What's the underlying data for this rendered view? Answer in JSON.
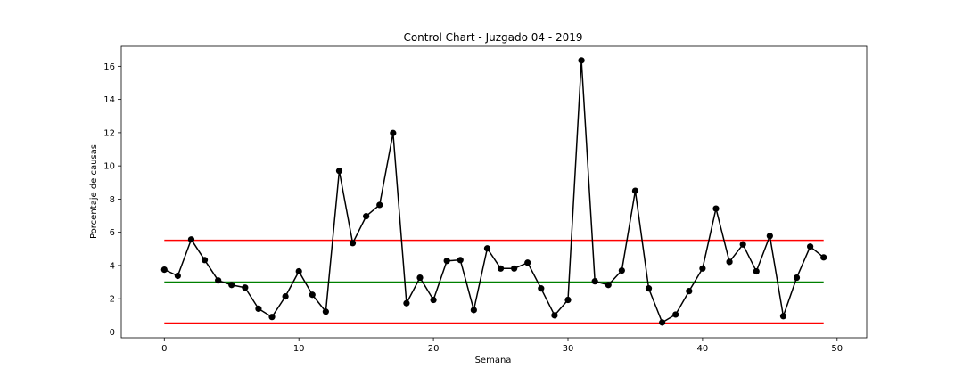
{
  "chart_data": {
    "type": "line",
    "title": "Control Chart - Juzgado 04 - 2019",
    "xlabel": "Semana",
    "ylabel": "Porcentaje de causas",
    "xlim": [
      -3.2,
      52.2
    ],
    "ylim": [
      -0.35,
      17.2
    ],
    "xticks": [
      0,
      10,
      20,
      30,
      40,
      50
    ],
    "yticks": [
      0,
      2,
      4,
      6,
      8,
      10,
      12,
      14,
      16
    ],
    "grid": false,
    "legend": "none",
    "series": [
      {
        "color": "#000000",
        "marker": "circle",
        "x": [
          0,
          1,
          2,
          3,
          4,
          5,
          6,
          7,
          8,
          9,
          10,
          11,
          12,
          13,
          14,
          15,
          16,
          17,
          18,
          19,
          20,
          21,
          22,
          23,
          24,
          25,
          26,
          27,
          28,
          29,
          30,
          31,
          32,
          33,
          34,
          35,
          36,
          37,
          38,
          39,
          40,
          41,
          42,
          43,
          44,
          45,
          46,
          47,
          48,
          49
        ],
        "values": [
          3.75,
          3.38,
          5.57,
          4.33,
          3.1,
          2.83,
          2.67,
          1.4,
          0.9,
          2.14,
          3.65,
          2.24,
          1.22,
          9.7,
          5.35,
          6.97,
          7.65,
          11.98,
          1.73,
          3.27,
          1.93,
          4.28,
          4.33,
          1.32,
          5.03,
          3.82,
          3.82,
          4.17,
          2.62,
          1.0,
          1.93,
          16.35,
          3.05,
          2.83,
          3.7,
          8.5,
          2.62,
          0.57,
          1.05,
          2.46,
          3.82,
          7.43,
          4.22,
          5.27,
          3.65,
          5.78,
          0.95,
          3.27,
          5.14,
          4.49
        ]
      }
    ],
    "reference_lines": [
      {
        "y": 5.52,
        "color": "#ff0000"
      },
      {
        "y": 3.0,
        "color": "#008000"
      },
      {
        "y": 0.53,
        "color": "#ff0000"
      }
    ],
    "reference_x_range": [
      0,
      49
    ]
  }
}
